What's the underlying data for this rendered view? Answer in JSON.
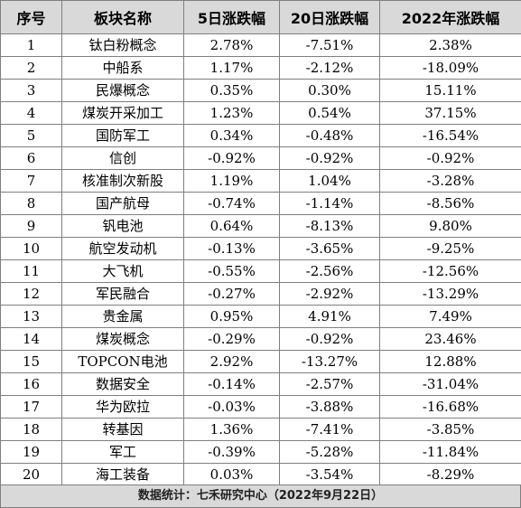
{
  "table": {
    "headers": [
      "序号",
      "板块名称",
      "5日涨跌幅",
      "20日涨跌幅",
      "2022年涨跌幅"
    ],
    "rows": [
      [
        "1",
        "钛白粉概念",
        "2.78%",
        "-7.51%",
        "2.38%"
      ],
      [
        "2",
        "中船系",
        "1.17%",
        "-2.12%",
        "-18.09%"
      ],
      [
        "3",
        "民爆概念",
        "0.35%",
        "0.30%",
        "15.11%"
      ],
      [
        "4",
        "煤炭开采加工",
        "1.23%",
        "0.54%",
        "37.15%"
      ],
      [
        "5",
        "国防军工",
        "0.34%",
        "-0.48%",
        "-16.54%"
      ],
      [
        "6",
        "信创",
        "-0.92%",
        "-0.92%",
        "-0.92%"
      ],
      [
        "7",
        "核准制次新股",
        "1.19%",
        "1.04%",
        "-3.28%"
      ],
      [
        "8",
        "国产航母",
        "-0.74%",
        "-1.14%",
        "-8.56%"
      ],
      [
        "9",
        "钒电池",
        "0.64%",
        "-8.13%",
        "9.80%"
      ],
      [
        "10",
        "航空发动机",
        "-0.13%",
        "-3.65%",
        "-9.25%"
      ],
      [
        "11",
        "大飞机",
        "-0.55%",
        "-2.56%",
        "-12.56%"
      ],
      [
        "12",
        "军民融合",
        "-0.27%",
        "-2.92%",
        "-13.29%"
      ],
      [
        "13",
        "贵金属",
        "0.95%",
        "4.91%",
        "7.49%"
      ],
      [
        "14",
        "煤炭概念",
        "-0.29%",
        "-0.92%",
        "23.46%"
      ],
      [
        "15",
        "TOPCON电池",
        "2.92%",
        "-13.27%",
        "12.88%"
      ],
      [
        "16",
        "数据安全",
        "-0.14%",
        "-2.57%",
        "-31.04%"
      ],
      [
        "17",
        "华为欧拉",
        "-0.03%",
        "-3.88%",
        "-16.68%"
      ],
      [
        "18",
        "转基因",
        "1.36%",
        "-7.41%",
        "-3.85%"
      ],
      [
        "19",
        "军工",
        "-0.39%",
        "-5.28%",
        "-11.84%"
      ],
      [
        "20",
        "海工装备",
        "0.03%",
        "-3.54%",
        "-8.29%"
      ]
    ]
  },
  "footer": {
    "text": "数据统计：七禾研究中心（2022年9月22日）"
  }
}
